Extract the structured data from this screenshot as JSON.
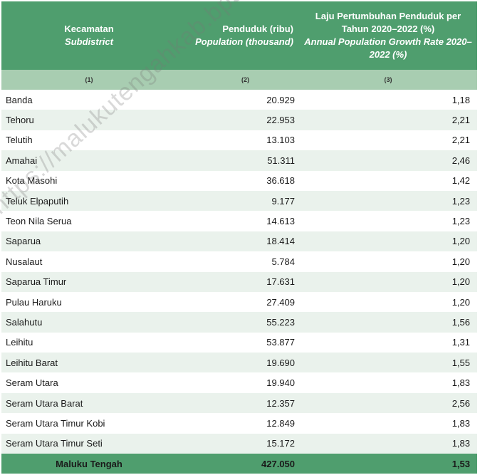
{
  "header": {
    "col1_id": "Kecamatan",
    "col1_en": "Subdistrict",
    "col2_id": "Penduduk (ribu)",
    "col2_en": "Population (thousand)",
    "col3_id": "Laju Pertumbuhan Penduduk per Tahun 2020–2022 (%)",
    "col3_en": "Annual Population Growth Rate 2020–2022 (%)"
  },
  "col_numbers": [
    "(1)",
    "(2)",
    "(3)"
  ],
  "rows": [
    {
      "name": "Banda",
      "population": "20.929",
      "growth": "1,18"
    },
    {
      "name": "Tehoru",
      "population": "22.953",
      "growth": "2,21"
    },
    {
      "name": "Telutih",
      "population": "13.103",
      "growth": "2,21"
    },
    {
      "name": "Amahai",
      "population": "51.311",
      "growth": "2,46"
    },
    {
      "name": "Kota Masohi",
      "population": "36.618",
      "growth": "1,42"
    },
    {
      "name": "Teluk Elpaputih",
      "population": "9.177",
      "growth": "1,23"
    },
    {
      "name": "Teon Nila Serua",
      "population": "14.613",
      "growth": "1,23"
    },
    {
      "name": "Saparua",
      "population": "18.414",
      "growth": "1,20"
    },
    {
      "name": "Nusalaut",
      "population": "5.784",
      "growth": "1,20"
    },
    {
      "name": "Saparua Timur",
      "population": "17.631",
      "growth": "1,20"
    },
    {
      "name": "Pulau Haruku",
      "population": "27.409",
      "growth": "1,20"
    },
    {
      "name": "Salahutu",
      "population": "55.223",
      "growth": "1,56"
    },
    {
      "name": "Leihitu",
      "population": "53.877",
      "growth": "1,31"
    },
    {
      "name": "Leihitu Barat",
      "population": "19.690",
      "growth": "1,55"
    },
    {
      "name": "Seram Utara",
      "population": "19.940",
      "growth": "1,83"
    },
    {
      "name": "Seram Utara Barat",
      "population": "12.357",
      "growth": "2,56"
    },
    {
      "name": "Seram Utara Timur Kobi",
      "population": "12.849",
      "growth": "1,83"
    },
    {
      "name": "Seram Utara Timur Seti",
      "population": "15.172",
      "growth": "1,83"
    }
  ],
  "total": {
    "name": "Maluku Tengah",
    "population": "427.050",
    "growth": "1,53"
  },
  "watermark": "https://malukutengahkab.bps.go.id",
  "colors": {
    "header_green": "#4f9e6e",
    "subheader_green": "#a8cdb1",
    "stripe": "#eaf2ec"
  }
}
